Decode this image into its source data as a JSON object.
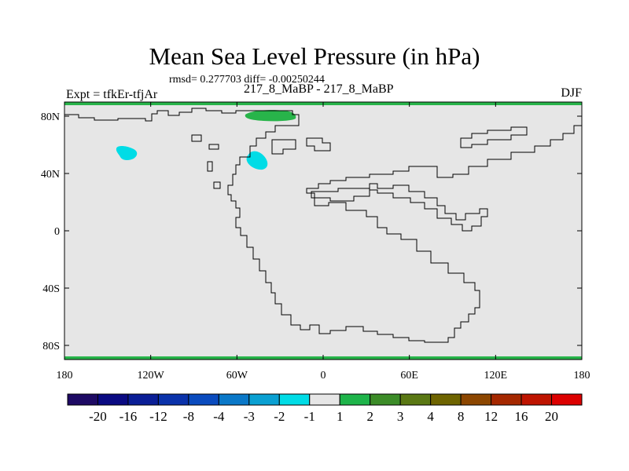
{
  "title": "Mean Sea Level Pressure (in hPa)",
  "stats": "rmsd= 0.277703 diff= -0.00250244",
  "experiment": "Expt = tfkEr-tfjAr",
  "subtitle": "217_8_MaBP - 217_8_MaBP",
  "season": "DJF",
  "map": {
    "background_color": "#e6e6e6",
    "coast_color": "#000000",
    "lon_ticks": [
      "180",
      "120W",
      "60W",
      "0",
      "60E",
      "120E",
      "180"
    ],
    "lat_ticks": [
      "80N",
      "40N",
      "0",
      "40S",
      "80S"
    ],
    "anomalies": [
      {
        "sign": "positive",
        "color": "#28b44a",
        "region": "north-polar band"
      },
      {
        "sign": "positive",
        "color": "#28b44a",
        "region": "south-polar band"
      },
      {
        "sign": "positive",
        "color": "#28b44a",
        "region": "high-latitude north"
      },
      {
        "sign": "negative",
        "color": "#00dce6",
        "region": "northern ocean west"
      },
      {
        "sign": "negative",
        "color": "#00dce6",
        "region": "northern continent"
      }
    ]
  },
  "colorbar": {
    "labels": [
      "-20",
      "-16",
      "-12",
      "-8",
      "-4",
      "-3",
      "-2",
      "-1",
      "1",
      "2",
      "3",
      "4",
      "8",
      "12",
      "16",
      "20"
    ],
    "colors": [
      "#1e0a64",
      "#0a0a82",
      "#0a1e96",
      "#0a32aa",
      "#0a4bbe",
      "#0a78c8",
      "#0aa0d2",
      "#00dce6",
      "#e6e6e6",
      "#1eb44a",
      "#3c8c28",
      "#5a7814",
      "#6e6400",
      "#8c4600",
      "#a52800",
      "#be1400",
      "#dc0000"
    ]
  }
}
